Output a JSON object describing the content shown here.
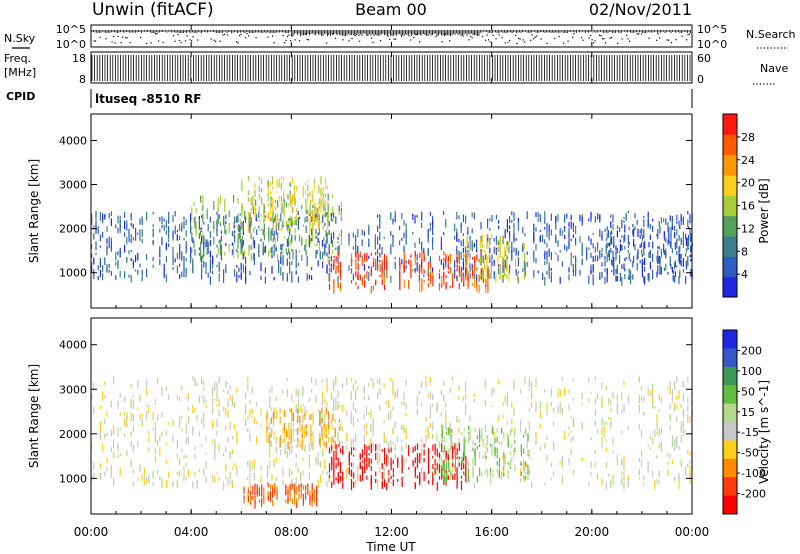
{
  "header": {
    "station": "Unwin (fitACF)",
    "beam": "Beam 00",
    "date": "02/Nov/2011"
  },
  "noise_panel": {
    "left_label": "N.Sky",
    "right_label": "N.Search",
    "ytick_top": "10^5",
    "ytick_bottom": "10^0"
  },
  "freq_panel": {
    "left_label_1": "Freq.",
    "left_label_2": "[MHz]",
    "right_label": "Nave",
    "left_ticks": [
      "18",
      "8"
    ],
    "right_ticks": [
      "60",
      "0"
    ]
  },
  "cpid_panel": {
    "label": "CPID",
    "text": "ltuseq -8510 RF"
  },
  "time_axis": {
    "title": "Time UT",
    "ticks": [
      "00:00",
      "04:00",
      "08:00",
      "12:00",
      "16:00",
      "20:00",
      "00:00"
    ]
  },
  "range_axis": {
    "title": "Slant Range [km]",
    "ticks": [
      "1000",
      "2000",
      "3000",
      "4000"
    ]
  },
  "power_bar": {
    "title": "Power [dB]",
    "ticks": [
      "4",
      "8",
      "12",
      "16",
      "20",
      "24",
      "28"
    ],
    "colors": [
      "#1f27e6",
      "#2e5dbf",
      "#3b7f8c",
      "#55a05c",
      "#a8cc3a",
      "#ffce1a",
      "#ff9800",
      "#ff5a00",
      "#ff1a10"
    ]
  },
  "velocity_bar": {
    "title": "Velocity [m s^-1]",
    "ticks": [
      "200",
      "100",
      "50",
      "15",
      "-15",
      "-50",
      "-100",
      "-200"
    ],
    "colors": [
      "#1f27e6",
      "#3557c8",
      "#3f9a5a",
      "#5fbf3c",
      "#b4d98c",
      "#c8c8c8",
      "#ffce1a",
      "#ff8c00",
      "#ff3a10",
      "#ff0000"
    ]
  },
  "chart_data": {
    "type": "heatmap",
    "x_unit": "hours UT",
    "xlim": [
      0,
      24
    ],
    "ylim": [
      200,
      4600
    ],
    "panels": [
      {
        "quantity": "Power [dB]",
        "regions": [
          {
            "t0": 0,
            "t1": 24,
            "r0": 900,
            "r1": 2400,
            "value": 6
          },
          {
            "t0": 4,
            "t1": 10,
            "r0": 1400,
            "r1": 2800,
            "value": 14
          },
          {
            "t0": 6,
            "t1": 9.5,
            "r0": 2000,
            "r1": 3200,
            "value": 18
          },
          {
            "t0": 9.5,
            "t1": 16,
            "r0": 700,
            "r1": 1500,
            "value": 28
          },
          {
            "t0": 15,
            "t1": 17.5,
            "r0": 900,
            "r1": 1900,
            "value": 18
          },
          {
            "t0": 20.5,
            "t1": 24,
            "r0": 900,
            "r1": 2100,
            "value": 5
          }
        ]
      },
      {
        "quantity": "Velocity [m s-1]",
        "regions": [
          {
            "t0": 0,
            "t1": 24,
            "r0": 900,
            "r1": 3300,
            "value": 0
          },
          {
            "t0": 6,
            "t1": 9,
            "r0": 500,
            "r1": 900,
            "value": -80
          },
          {
            "t0": 9.5,
            "t1": 15,
            "r0": 900,
            "r1": 1800,
            "value": -200
          },
          {
            "t0": 14,
            "t1": 17.5,
            "r0": 1000,
            "r1": 2200,
            "value": 40
          },
          {
            "t0": 7,
            "t1": 10,
            "r0": 1800,
            "r1": 2600,
            "value": -40
          }
        ]
      }
    ]
  }
}
